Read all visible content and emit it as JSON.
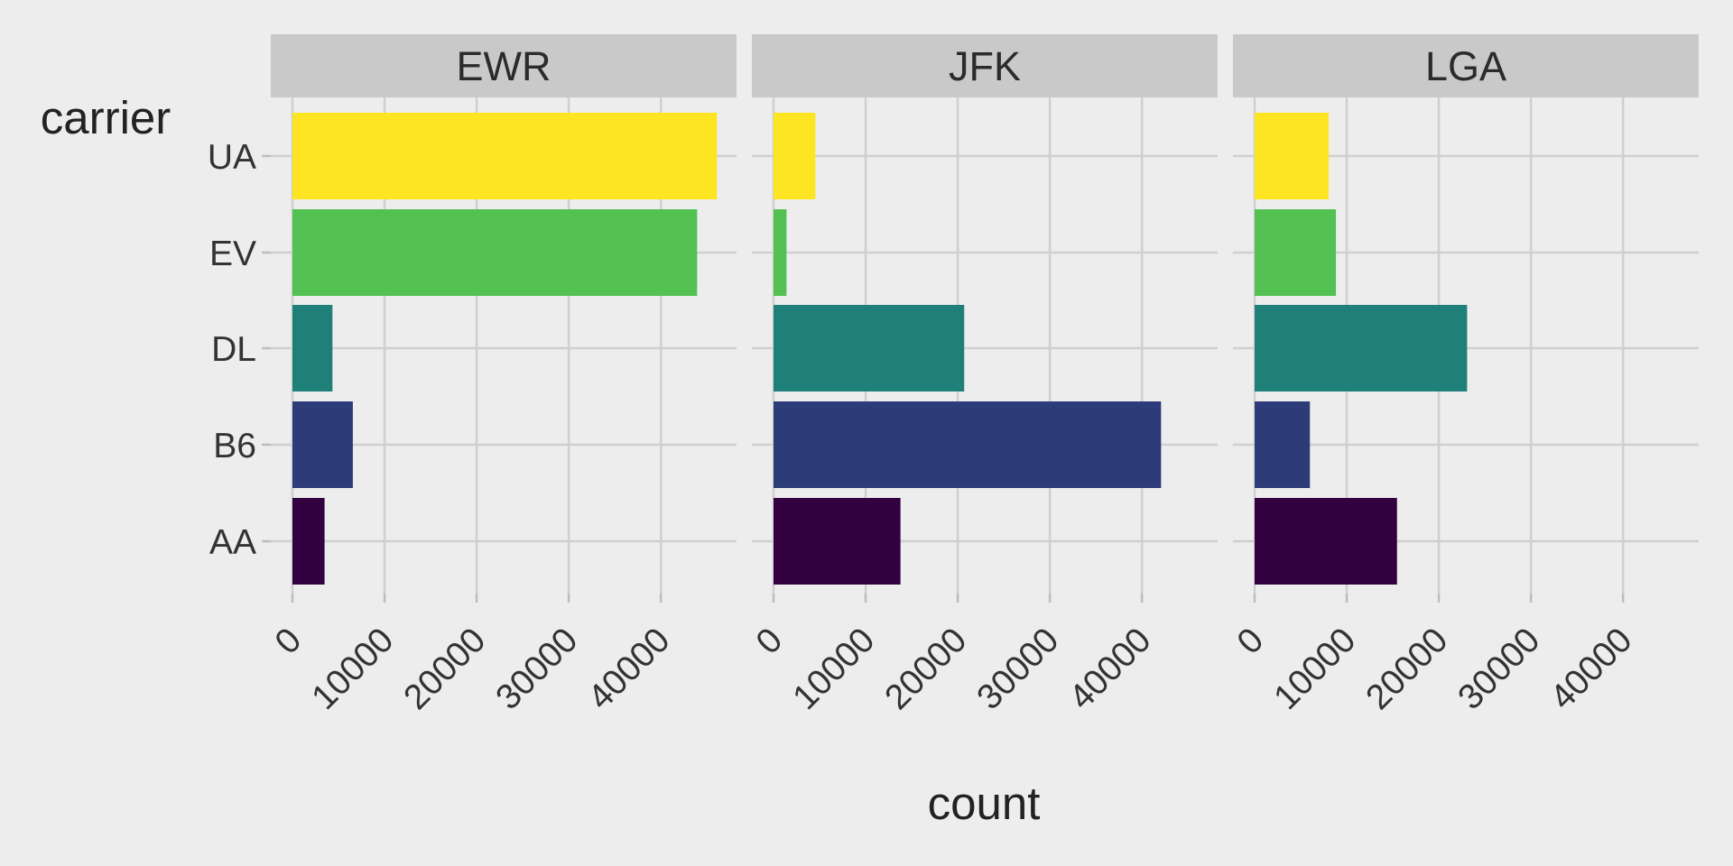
{
  "chart_data": {
    "type": "bar",
    "orientation": "horizontal",
    "faceted_by": [
      "EWR",
      "JFK",
      "LGA"
    ],
    "categories": [
      "AA",
      "B6",
      "DL",
      "EV",
      "UA"
    ],
    "colors": {
      "AA": "#330040",
      "B6": "#2d3c78",
      "DL": "#1f7f79",
      "EV": "#52c152",
      "UA": "#fde521"
    },
    "panels": [
      {
        "facet": "EWR",
        "values": {
          "AA": 3487,
          "B6": 6557,
          "DL": 4342,
          "EV": 43939,
          "UA": 46087
        }
      },
      {
        "facet": "JFK",
        "values": {
          "AA": 13783,
          "B6": 42076,
          "DL": 20701,
          "EV": 1408,
          "UA": 4534
        }
      },
      {
        "facet": "LGA",
        "values": {
          "AA": 15459,
          "B6": 6002,
          "DL": 23067,
          "EV": 8826,
          "UA": 8044
        }
      }
    ],
    "x_ticks": [
      "0",
      "10000",
      "20000",
      "30000",
      "40000"
    ],
    "xlim": [
      0,
      48500
    ],
    "xlabel": "count",
    "legend_title": "carrier",
    "grid": true
  }
}
